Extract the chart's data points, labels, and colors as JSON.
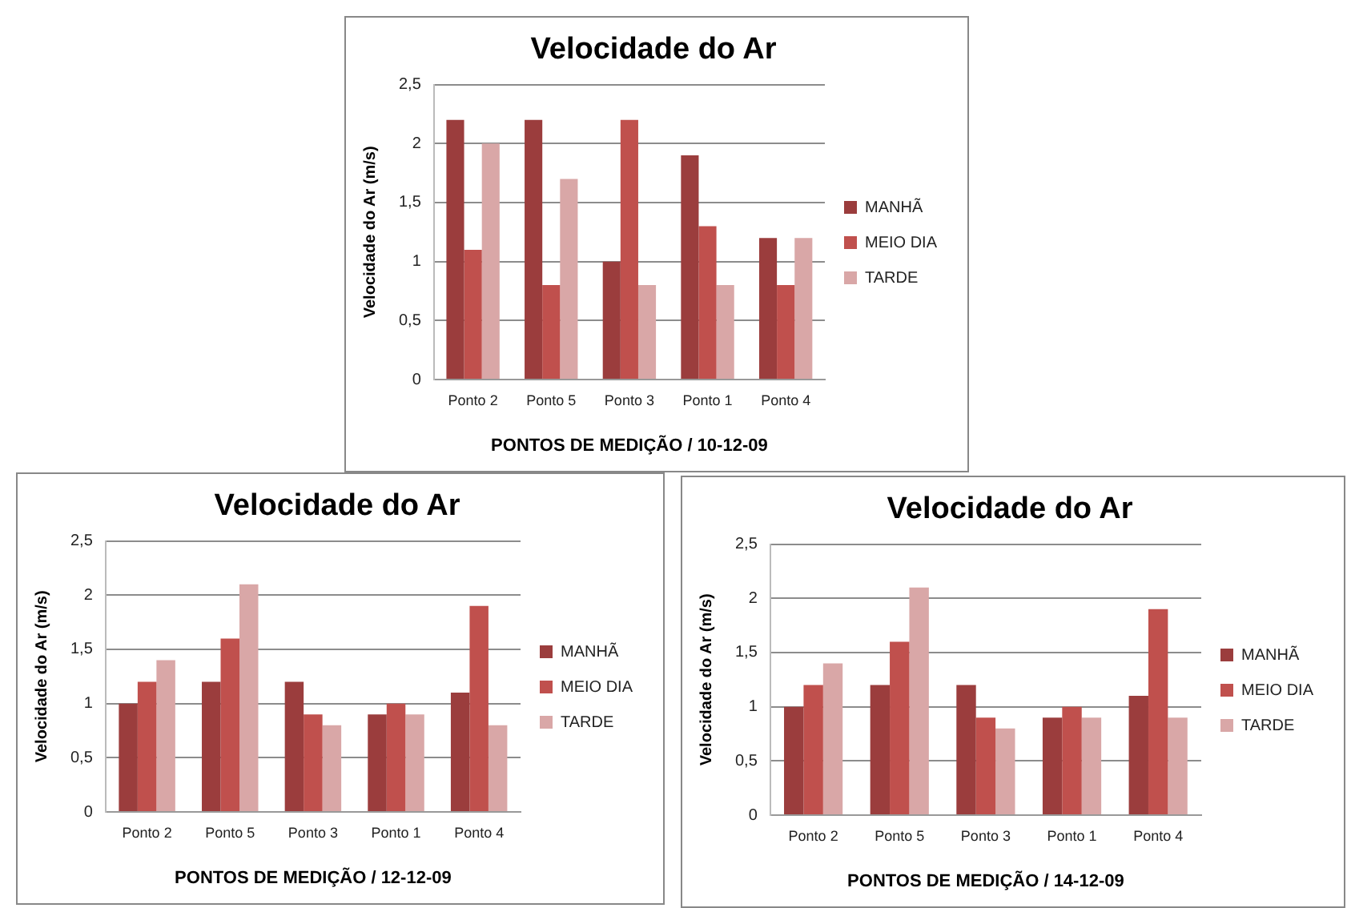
{
  "chart_data": [
    {
      "type": "bar",
      "title": "Velocidade do Ar",
      "xlabel": "PONTOS DE MEDIÇÃO / 10-12-09",
      "ylabel": "Velocidade do Ar (m/s)",
      "categories": [
        "Ponto 2",
        "Ponto 5",
        "Ponto 3",
        "Ponto 1",
        "Ponto 4"
      ],
      "ylim": [
        0,
        2.5
      ],
      "yticks": [
        0,
        {
          "value": 0.5,
          "label": "0,5"
        },
        1,
        {
          "value": 1.5,
          "label": "1,5"
        },
        2,
        {
          "value": 2.5,
          "label": "2,5"
        }
      ],
      "grid": "y",
      "legend": "right",
      "series": [
        {
          "name": "MANHÃ",
          "color": "#9b3d3d",
          "values": [
            2.2,
            2.2,
            1.0,
            1.9,
            1.2
          ]
        },
        {
          "name": "MEIO DIA",
          "color": "#c0504d",
          "values": [
            1.1,
            0.8,
            2.2,
            1.3,
            0.8
          ]
        },
        {
          "name": "TARDE",
          "color": "#d9a7a7",
          "values": [
            2.0,
            1.7,
            0.8,
            0.8,
            1.2
          ]
        }
      ]
    },
    {
      "type": "bar",
      "title": "Velocidade do Ar",
      "xlabel": "PONTOS DE MEDIÇÃO / 12-12-09",
      "ylabel": "Velocidade do Ar (m/s)",
      "categories": [
        "Ponto 2",
        "Ponto 5",
        "Ponto 3",
        "Ponto 1",
        "Ponto 4"
      ],
      "ylim": [
        0,
        2.5
      ],
      "yticks": [
        0,
        {
          "value": 0.5,
          "label": "0,5"
        },
        1,
        {
          "value": 1.5,
          "label": "1,5"
        },
        2,
        {
          "value": 2.5,
          "label": "2,5"
        }
      ],
      "grid": "y",
      "legend": "right",
      "series": [
        {
          "name": "MANHÃ",
          "color": "#9b3d3d",
          "values": [
            1.0,
            1.2,
            1.2,
            0.9,
            1.1
          ]
        },
        {
          "name": "MEIO DIA",
          "color": "#c0504d",
          "values": [
            1.2,
            1.6,
            0.9,
            1.0,
            1.9
          ]
        },
        {
          "name": "TARDE",
          "color": "#d9a7a7",
          "values": [
            1.4,
            2.1,
            0.8,
            0.9,
            0.8
          ]
        }
      ]
    },
    {
      "type": "bar",
      "title": "Velocidade do Ar",
      "xlabel": "PONTOS DE MEDIÇÃO / 14-12-09",
      "ylabel": "Velocidade do Ar (m/s)",
      "categories": [
        "Ponto 2",
        "Ponto 5",
        "Ponto 3",
        "Ponto 1",
        "Ponto 4"
      ],
      "ylim": [
        0,
        2.5
      ],
      "yticks": [
        0,
        {
          "value": 0.5,
          "label": "0,5"
        },
        1,
        {
          "value": 1.5,
          "label": "1,5"
        },
        2,
        {
          "value": 2.5,
          "label": "2,5"
        }
      ],
      "grid": "y",
      "legend": "right",
      "series": [
        {
          "name": "MANHÃ",
          "color": "#9b3d3d",
          "values": [
            1.0,
            1.2,
            1.2,
            0.9,
            1.1
          ]
        },
        {
          "name": "MEIO DIA",
          "color": "#c0504d",
          "values": [
            1.2,
            1.6,
            0.9,
            1.0,
            1.9
          ]
        },
        {
          "name": "TARDE",
          "color": "#d9a7a7",
          "values": [
            1.4,
            2.1,
            0.8,
            0.9,
            0.9
          ]
        }
      ]
    }
  ]
}
